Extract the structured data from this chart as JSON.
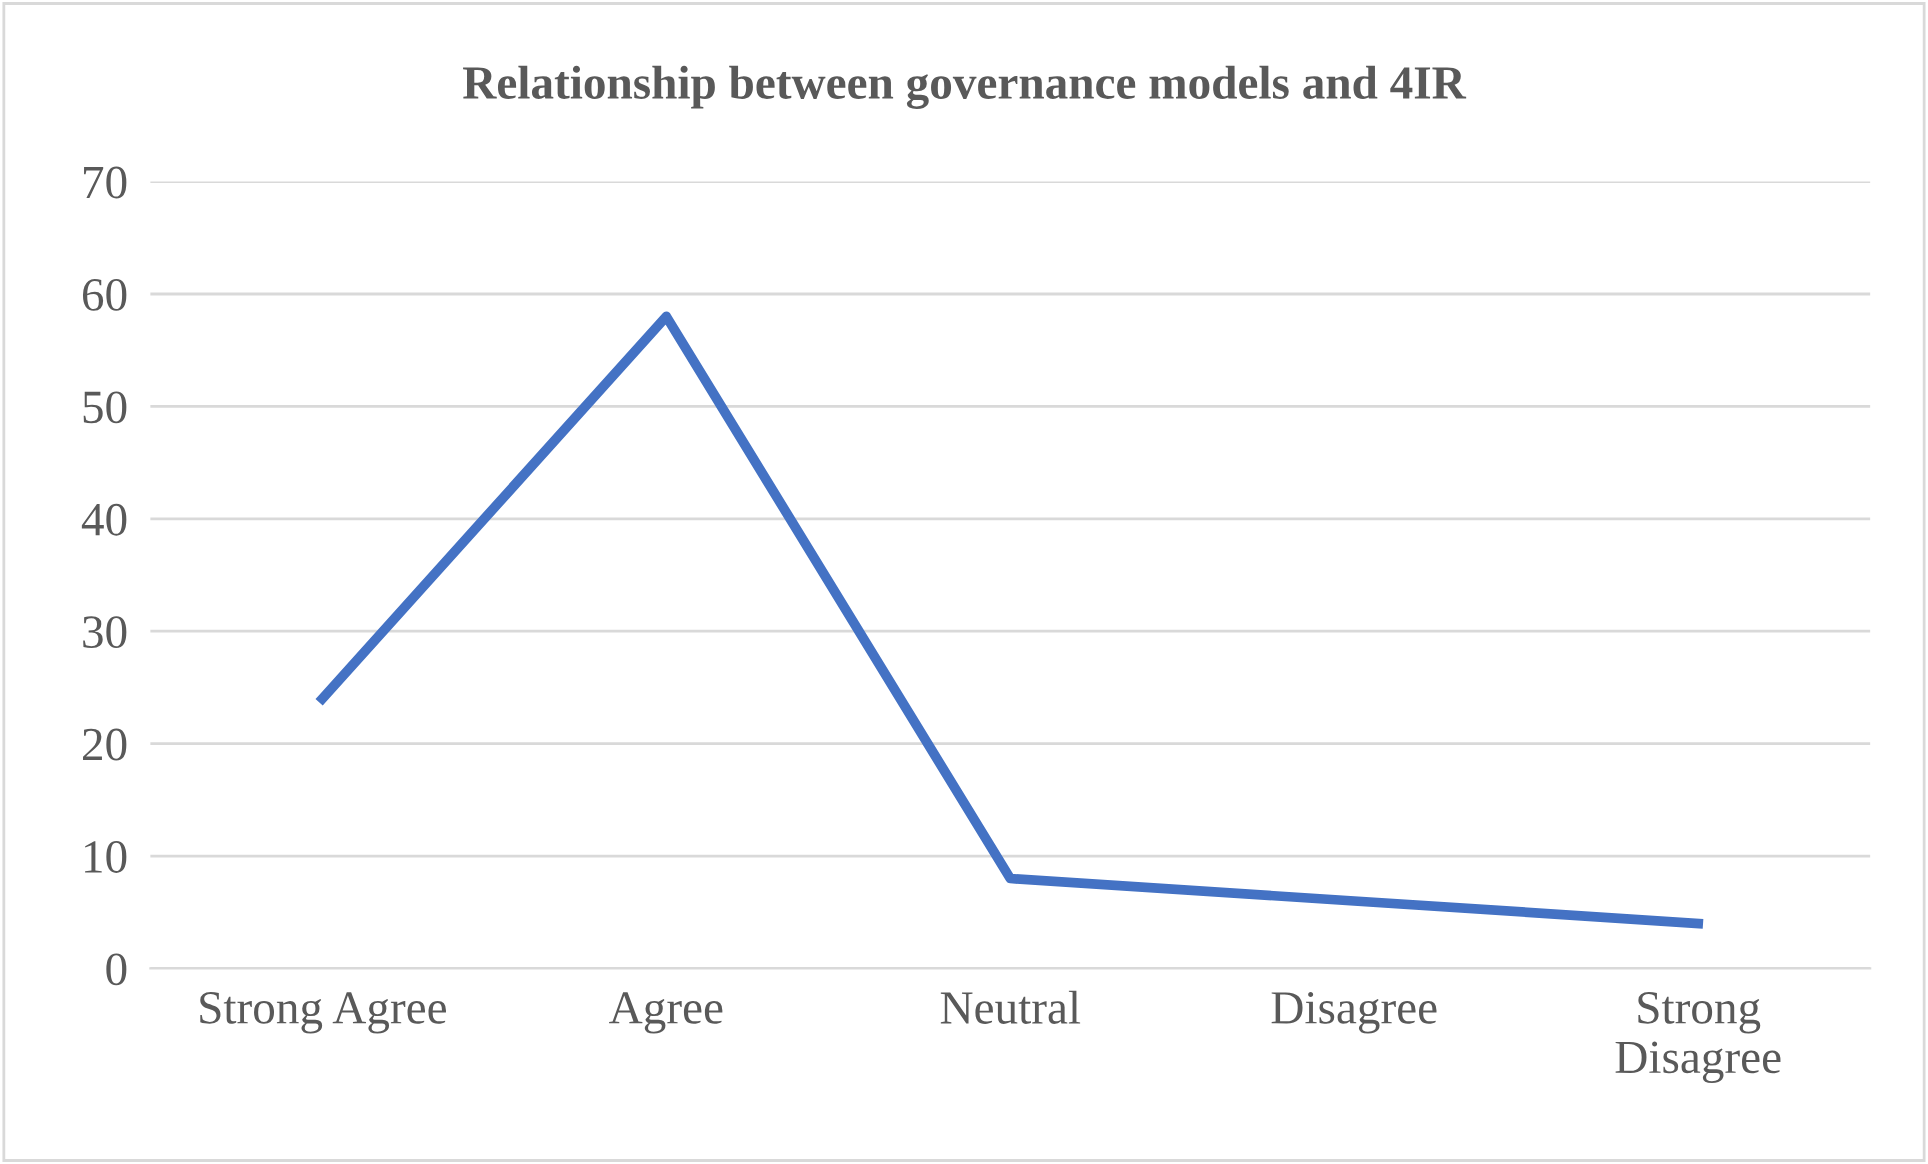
{
  "chart_data": {
    "type": "line",
    "title": "Relationship between governance models and 4IR",
    "categories": [
      "Strong Agree",
      "Agree",
      "Neutral",
      "Disagree",
      "Strong\nDisagree"
    ],
    "series": [
      {
        "color": "#4472c4",
        "values": [
          24,
          58,
          8,
          6,
          4
        ]
      }
    ],
    "ylim": [
      0,
      70
    ],
    "yticks": [
      0,
      10,
      20,
      30,
      40,
      50,
      60,
      70
    ],
    "grid": "y",
    "marker": "none",
    "line_style": "solid"
  }
}
